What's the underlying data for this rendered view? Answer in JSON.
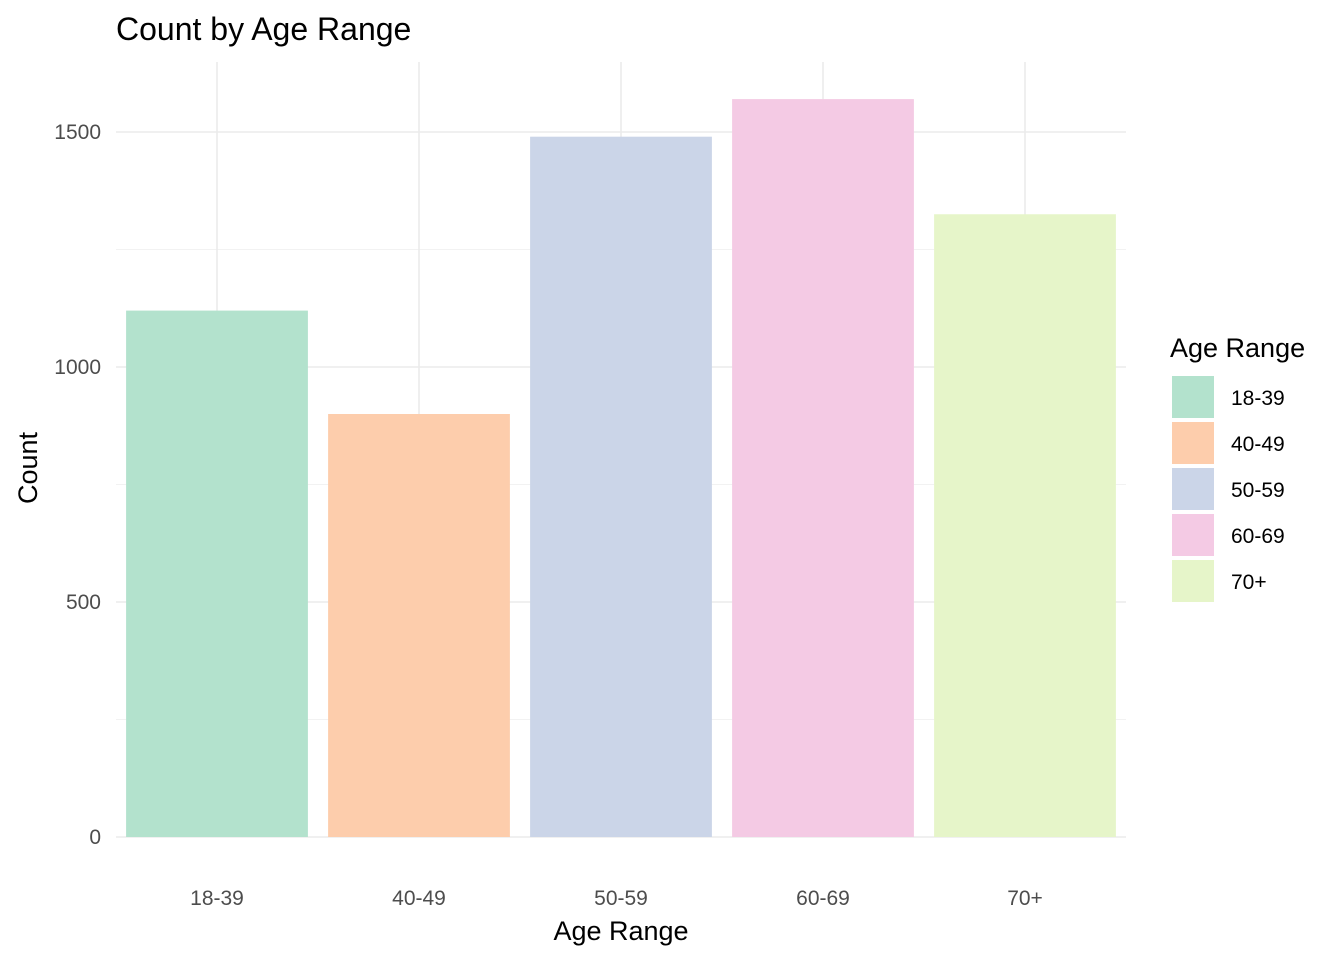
{
  "chart_data": {
    "type": "bar",
    "title": "Count by Age Range",
    "xlabel": "Age Range",
    "ylabel": "Count",
    "categories": [
      "18-39",
      "40-49",
      "50-59",
      "60-69",
      "70+"
    ],
    "values": [
      1120,
      900,
      1490,
      1570,
      1325
    ],
    "colors": [
      "#b3e2cd",
      "#fdcdac",
      "#cbd5e8",
      "#f4cae4",
      "#e6f5c9"
    ],
    "ylim": [
      0,
      1640
    ],
    "yticks": [
      0,
      500,
      1000,
      1500
    ],
    "ytick_labels": [
      "0",
      "500",
      "1000",
      "1500"
    ],
    "grid": true,
    "legend": {
      "title": "Age Range",
      "placement": "right",
      "entries": [
        "18-39",
        "40-49",
        "50-59",
        "60-69",
        "70+"
      ]
    }
  }
}
